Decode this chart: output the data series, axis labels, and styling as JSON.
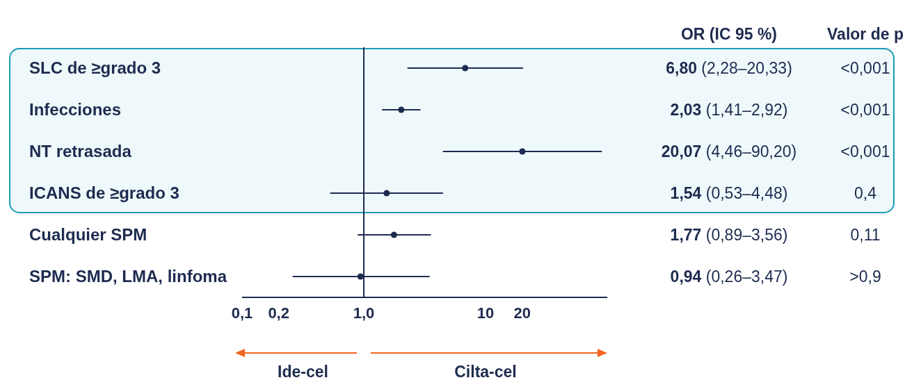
{
  "chart_data": {
    "type": "scatter",
    "orientation": "horizontal",
    "categories": [
      "SLC de ≥grado 3",
      "Infecciones",
      "NT retrasada",
      "ICANS de ≥grado 3",
      "Cualquier SPM",
      "SPM: SMD, LMA, linfoma"
    ],
    "values": [
      6.8,
      2.03,
      20.07,
      1.54,
      1.77,
      0.94
    ],
    "errors": [
      [
        2.28,
        20.33
      ],
      [
        1.41,
        2.92
      ],
      [
        4.46,
        90.2
      ],
      [
        0.53,
        4.48
      ],
      [
        0.89,
        3.56
      ],
      [
        0.26,
        3.47
      ]
    ],
    "value_labels": [
      "6,80 (2,28–20,33)",
      "2,03 (1,41–2,92)",
      "20,07 (4,46–90,20)",
      "1,54 (0,53–4,48)",
      "1,77 (0,89–3,56)",
      "0,94 (0,26–3,47)"
    ],
    "color": "#1d2b4f",
    "marker": "circle",
    "log": "x",
    "xlim": [
      0.1,
      100
    ],
    "xticks": [
      {
        "value": 0.1,
        "label": "0,1"
      },
      {
        "value": 0.2,
        "label": "0,2"
      },
      {
        "value": 1,
        "label": "1,0"
      },
      10,
      20
    ],
    "ref_lines": [
      {
        "axis": "x",
        "value": 1,
        "color": "#1d2b4f"
      }
    ],
    "bands": [
      {
        "axis": "y",
        "from": "SLC de ≥grado 3",
        "to": "ICANS de ≥grado 3",
        "color": "#1a9bb5"
      }
    ],
    "annotations": [
      "OR (IC 95 %)",
      "Valor de p",
      "Ide-cel",
      "Cilta-cel",
      "<0,001",
      "<0,001",
      "<0,001",
      "0,4",
      "0,11",
      ">0,9"
    ]
  }
}
